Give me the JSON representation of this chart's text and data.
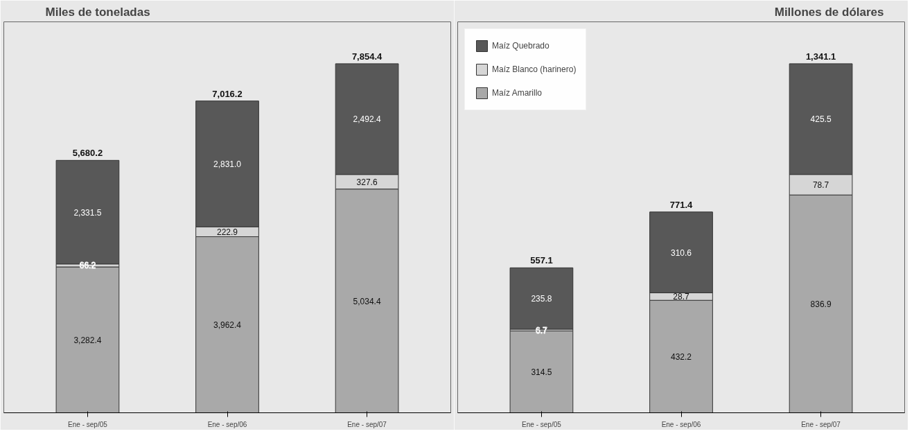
{
  "chart_data": [
    {
      "type": "bar",
      "title": "Miles de toneladas",
      "stacked": true,
      "legend": false,
      "grid": false,
      "categories": [
        "Ene - sep/05",
        "Ene - sep/06",
        "Ene - sep/07"
      ],
      "series": [
        {
          "color": "#a9a9a9",
          "values": [
            3282.4,
            3962.4,
            5034.4
          ],
          "value_labels": [
            "3,282.4",
            "3,962.4",
            "5,034.4"
          ]
        },
        {
          "color": "#d6d6d6",
          "values": [
            66.2,
            222.9,
            327.6
          ],
          "value_labels": [
            "66.2",
            "222.9",
            "327.6"
          ]
        },
        {
          "color": "#585858",
          "values": [
            2331.5,
            2831.0,
            2492.4
          ],
          "value_labels": [
            "2,331.5",
            "2,831.0",
            "2,492.4"
          ]
        }
      ],
      "totals": [
        "5,680.2",
        "7,016.2",
        "7,854.4"
      ]
    },
    {
      "type": "bar",
      "title": "Millones de dólares",
      "stacked": true,
      "legend": "top left",
      "grid": false,
      "categories": [
        "Ene - sep/05",
        "Ene - sep/06",
        "Ene - sep/07"
      ],
      "series": [
        {
          "name": "Maíz Amarillo",
          "color": "#a9a9a9",
          "values": [
            314.5,
            432.2,
            836.9
          ],
          "value_labels": [
            "314.5",
            "432.2",
            "836.9"
          ]
        },
        {
          "name": "Maíz Blanco (harinero)",
          "color": "#d6d6d6",
          "values": [
            6.7,
            28.7,
            78.7
          ],
          "value_labels": [
            "6.7",
            "28.7",
            "78.7"
          ]
        },
        {
          "name": "Maíz Quebrado",
          "color": "#585858",
          "values": [
            235.8,
            310.6,
            425.5
          ],
          "value_labels": [
            "235.8",
            "310.6",
            "425.5"
          ]
        }
      ],
      "totals": [
        "557.1",
        "771.4",
        "1,341.1"
      ]
    }
  ]
}
